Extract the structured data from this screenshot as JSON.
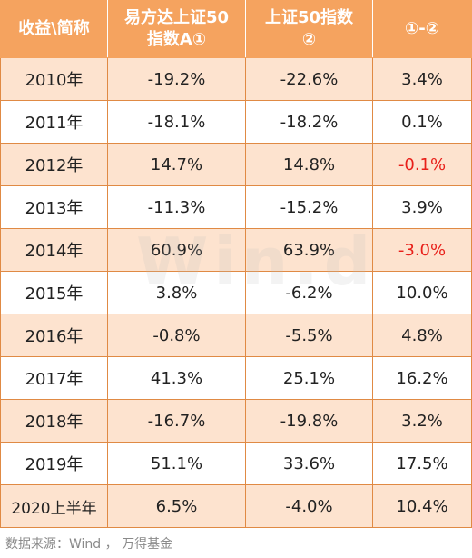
{
  "table": {
    "headers": [
      {
        "line1": "收益\\简称",
        "line2": ""
      },
      {
        "line1": "易方达上证50",
        "line2": "指数A①"
      },
      {
        "line1": "上证50指数",
        "line2": "②"
      },
      {
        "line1": "①-②",
        "line2": ""
      }
    ],
    "rows": [
      {
        "year": "2010年",
        "fund": "-19.2%",
        "index": "-22.6%",
        "diff": "3.4%",
        "diff_negative": false
      },
      {
        "year": "2011年",
        "fund": "-18.1%",
        "index": "-18.2%",
        "diff": "0.1%",
        "diff_negative": false
      },
      {
        "year": "2012年",
        "fund": "14.7%",
        "index": "14.8%",
        "diff": "-0.1%",
        "diff_negative": true
      },
      {
        "year": "2013年",
        "fund": "-11.3%",
        "index": "-15.2%",
        "diff": "3.9%",
        "diff_negative": false
      },
      {
        "year": "2014年",
        "fund": "60.9%",
        "index": "63.9%",
        "diff": "-3.0%",
        "diff_negative": true
      },
      {
        "year": "2015年",
        "fund": "3.8%",
        "index": "-6.2%",
        "diff": "10.0%",
        "diff_negative": false
      },
      {
        "year": "2016年",
        "fund": "-0.8%",
        "index": "-5.5%",
        "diff": "4.8%",
        "diff_negative": false
      },
      {
        "year": "2017年",
        "fund": "41.3%",
        "index": "25.1%",
        "diff": "16.2%",
        "diff_negative": false
      },
      {
        "year": "2018年",
        "fund": "-16.7%",
        "index": "-19.8%",
        "diff": "3.2%",
        "diff_negative": false
      },
      {
        "year": "2019年",
        "fund": "51.1%",
        "index": "33.6%",
        "diff": "17.5%",
        "diff_negative": false
      },
      {
        "year": "2020上半年",
        "fund": "6.5%",
        "index": "-4.0%",
        "diff": "10.4%",
        "diff_negative": false
      }
    ]
  },
  "watermark": "Win.d",
  "source": "数据来源：Wind ， 万得基金",
  "colors": {
    "header_bg": "#f5a35f",
    "header_text": "#ffffff",
    "row_alt_bg": "#fde3cf",
    "negative": "#e8201a"
  }
}
